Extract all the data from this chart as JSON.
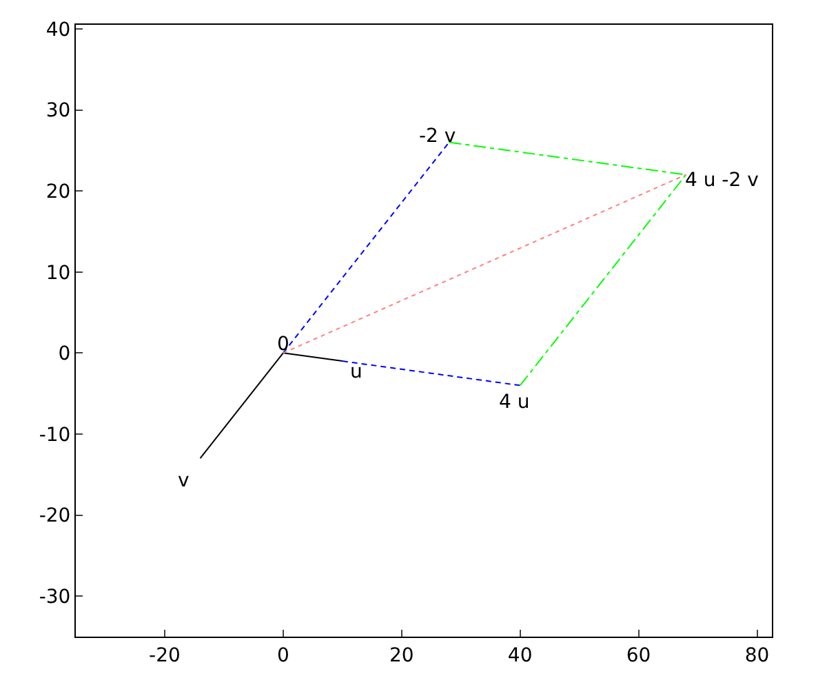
{
  "chart_data": {
    "type": "line",
    "xlim": [
      -35,
      82.5
    ],
    "ylim": [
      -35,
      40.5
    ],
    "xticks": [
      -20,
      0,
      20,
      40,
      60,
      80
    ],
    "yticks": [
      -30,
      -20,
      -10,
      0,
      10,
      20,
      30,
      40
    ],
    "series": [
      {
        "color": "#000000",
        "line_style": "solid",
        "x": [
          0,
          10
        ],
        "values": [
          0,
          -1
        ]
      },
      {
        "color": "#000000",
        "line_style": "solid",
        "x": [
          0,
          -14
        ],
        "values": [
          0,
          -13
        ]
      },
      {
        "color": "#0000ff",
        "line_style": "dashed",
        "x": [
          0,
          28
        ],
        "values": [
          0,
          26
        ]
      },
      {
        "color": "#0000ff",
        "line_style": "dashed",
        "x": [
          10,
          40
        ],
        "values": [
          -1,
          -4
        ]
      },
      {
        "color": "#00ff00",
        "line_style": "dashdot",
        "x": [
          28,
          68
        ],
        "values": [
          26,
          22
        ]
      },
      {
        "color": "#00ff00",
        "line_style": "dashdot",
        "x": [
          40,
          68
        ],
        "values": [
          -4,
          22
        ]
      },
      {
        "color": "#ff8080",
        "line_style": "dotted",
        "x": [
          0,
          68
        ],
        "values": [
          0,
          22
        ]
      }
    ],
    "annotations": [
      {
        "text": "0",
        "x": 0,
        "y": 0
      },
      {
        "text": "u",
        "x": 10,
        "y": -1
      },
      {
        "text": "v",
        "x": -14,
        "y": -13
      },
      {
        "text": "4 u",
        "x": 40,
        "y": -4
      },
      {
        "text": "-2 v",
        "x": 28,
        "y": 26
      },
      {
        "text": "4 u -2 v",
        "x": 68,
        "y": 22
      }
    ]
  }
}
